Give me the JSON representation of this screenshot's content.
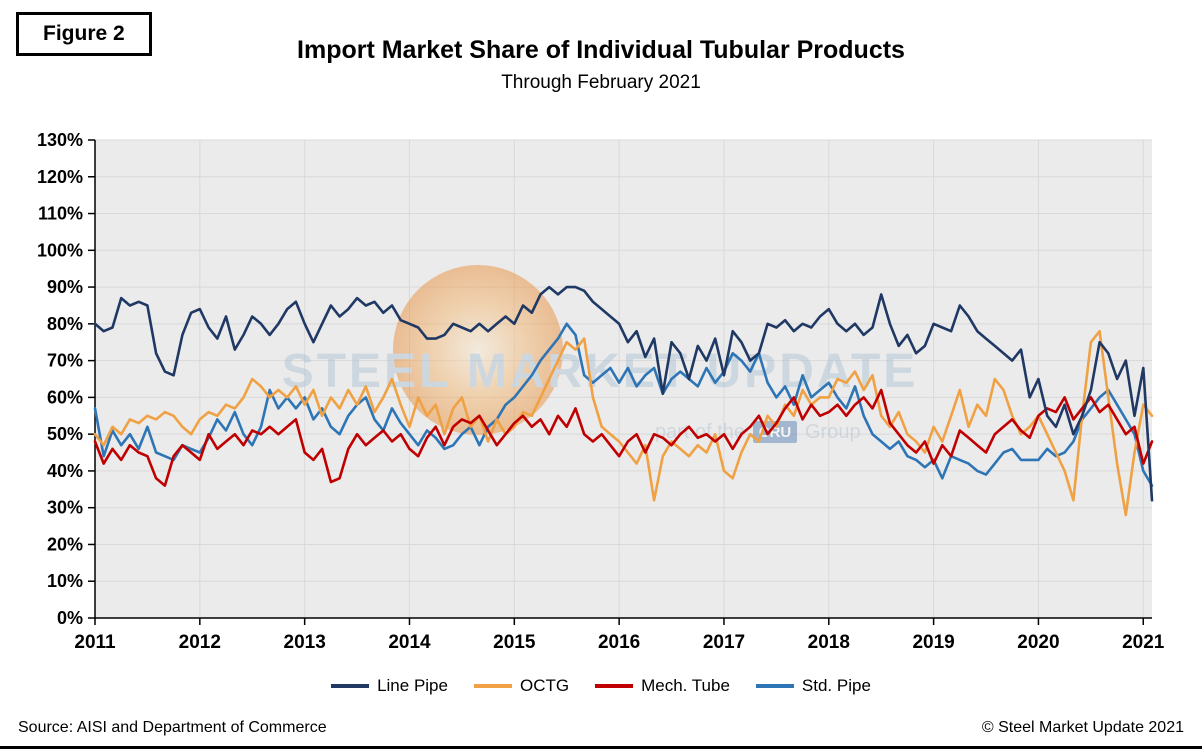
{
  "figure_label": "Figure 2",
  "title": "Import Market Share of Individual Tubular Products",
  "subtitle": "Through February 2021",
  "watermark": {
    "text": "STEEL MARKET UPDATE",
    "tagline_prefix": "part of the",
    "tagline_badge": "CRU",
    "tagline_suffix": "Group"
  },
  "footer": {
    "source": "Source: AISI and Department of Commerce",
    "copyright": "© Steel Market Update 2021"
  },
  "chart_data": {
    "type": "line",
    "x_frequency": "monthly",
    "x_range": [
      "2011-01",
      "2021-02"
    ],
    "x_tick_labels": [
      "2011",
      "2012",
      "2013",
      "2014",
      "2015",
      "2016",
      "2017",
      "2018",
      "2019",
      "2020",
      "2021"
    ],
    "ylim": [
      0,
      130
    ],
    "y_tick_step": 10,
    "y_tick_labels": [
      "0%",
      "10%",
      "20%",
      "30%",
      "40%",
      "50%",
      "60%",
      "70%",
      "80%",
      "90%",
      "100%",
      "110%",
      "120%",
      "130%"
    ],
    "grid": true,
    "legend_position": "bottom",
    "plot_bg_color": "#EBEBEB",
    "gridline_color": "#D9D9D9",
    "series": [
      {
        "name": "Line Pipe",
        "color": "#1F3864",
        "values": [
          80,
          78,
          79,
          87,
          85,
          86,
          85,
          72,
          67,
          66,
          77,
          83,
          84,
          79,
          76,
          82,
          73,
          77,
          82,
          80,
          77,
          80,
          84,
          86,
          80,
          75,
          80,
          85,
          82,
          84,
          87,
          85,
          86,
          83,
          85,
          81,
          80,
          79,
          76,
          76,
          77,
          80,
          79,
          78,
          80,
          78,
          80,
          82,
          80,
          85,
          83,
          88,
          90,
          88,
          90,
          90,
          89,
          86,
          84,
          82,
          80,
          75,
          78,
          71,
          76,
          61,
          75,
          72,
          65,
          74,
          70,
          76,
          66,
          78,
          75,
          70,
          72,
          80,
          79,
          81,
          78,
          80,
          79,
          82,
          84,
          80,
          78,
          80,
          77,
          79,
          88,
          80,
          74,
          77,
          72,
          74,
          80,
          79,
          78,
          85,
          82,
          78,
          76,
          74,
          72,
          70,
          73,
          60,
          65,
          55,
          52,
          58,
          50,
          55,
          62,
          75,
          72,
          65,
          70,
          55,
          68,
          32
        ]
      },
      {
        "name": "OCTG",
        "color": "#F0A143",
        "values": [
          50,
          47,
          52,
          50,
          54,
          53,
          55,
          54,
          56,
          55,
          52,
          50,
          54,
          56,
          55,
          58,
          57,
          60,
          65,
          63,
          60,
          62,
          60,
          63,
          58,
          62,
          55,
          60,
          57,
          62,
          58,
          63,
          56,
          60,
          65,
          58,
          52,
          60,
          55,
          58,
          50,
          57,
          60,
          52,
          55,
          48,
          54,
          50,
          52,
          56,
          55,
          60,
          65,
          70,
          75,
          73,
          76,
          60,
          52,
          50,
          48,
          45,
          42,
          47,
          32,
          44,
          48,
          46,
          44,
          47,
          45,
          50,
          40,
          38,
          45,
          50,
          48,
          55,
          52,
          58,
          55,
          62,
          58,
          60,
          60,
          65,
          64,
          67,
          62,
          66,
          55,
          52,
          56,
          50,
          48,
          45,
          52,
          48,
          55,
          62,
          52,
          58,
          55,
          65,
          62,
          55,
          50,
          52,
          55,
          50,
          45,
          40,
          32,
          55,
          75,
          78,
          60,
          42,
          28,
          45,
          58,
          55
        ]
      },
      {
        "name": "Mech. Tube",
        "color": "#C00000",
        "values": [
          48,
          42,
          46,
          43,
          47,
          45,
          44,
          38,
          36,
          44,
          47,
          45,
          43,
          50,
          46,
          48,
          50,
          47,
          51,
          50,
          52,
          50,
          52,
          54,
          45,
          43,
          46,
          37,
          38,
          46,
          50,
          47,
          49,
          51,
          48,
          50,
          46,
          44,
          49,
          52,
          47,
          52,
          54,
          53,
          55,
          51,
          47,
          50,
          53,
          55,
          52,
          54,
          50,
          55,
          52,
          57,
          50,
          48,
          50,
          47,
          44,
          48,
          50,
          45,
          50,
          49,
          47,
          50,
          52,
          49,
          50,
          48,
          50,
          46,
          50,
          52,
          55,
          50,
          53,
          57,
          60,
          54,
          58,
          55,
          56,
          58,
          55,
          58,
          60,
          57,
          62,
          53,
          50,
          47,
          45,
          48,
          42,
          47,
          44,
          51,
          49,
          47,
          45,
          50,
          52,
          54,
          51,
          49,
          55,
          57,
          56,
          60,
          54,
          57,
          60,
          56,
          58,
          54,
          50,
          52,
          42,
          48
        ]
      },
      {
        "name": "Std. Pipe",
        "color": "#2E75B6",
        "values": [
          57,
          44,
          51,
          47,
          50,
          46,
          52,
          45,
          44,
          43,
          47,
          46,
          45,
          49,
          54,
          51,
          56,
          50,
          47,
          52,
          62,
          57,
          60,
          57,
          60,
          54,
          57,
          52,
          50,
          55,
          58,
          60,
          54,
          51,
          57,
          53,
          50,
          47,
          51,
          49,
          46,
          47,
          50,
          52,
          47,
          52,
          54,
          58,
          60,
          63,
          66,
          70,
          73,
          76,
          80,
          77,
          66,
          64,
          66,
          68,
          64,
          68,
          63,
          66,
          68,
          61,
          65,
          67,
          65,
          63,
          68,
          64,
          67,
          72,
          70,
          67,
          72,
          64,
          60,
          63,
          58,
          66,
          60,
          62,
          64,
          60,
          57,
          63,
          55,
          50,
          48,
          46,
          48,
          44,
          43,
          41,
          43,
          38,
          44,
          43,
          42,
          40,
          39,
          42,
          45,
          46,
          43,
          43,
          43,
          46,
          44,
          45,
          48,
          54,
          57,
          60,
          62,
          58,
          54,
          50,
          40,
          36
        ]
      }
    ]
  }
}
